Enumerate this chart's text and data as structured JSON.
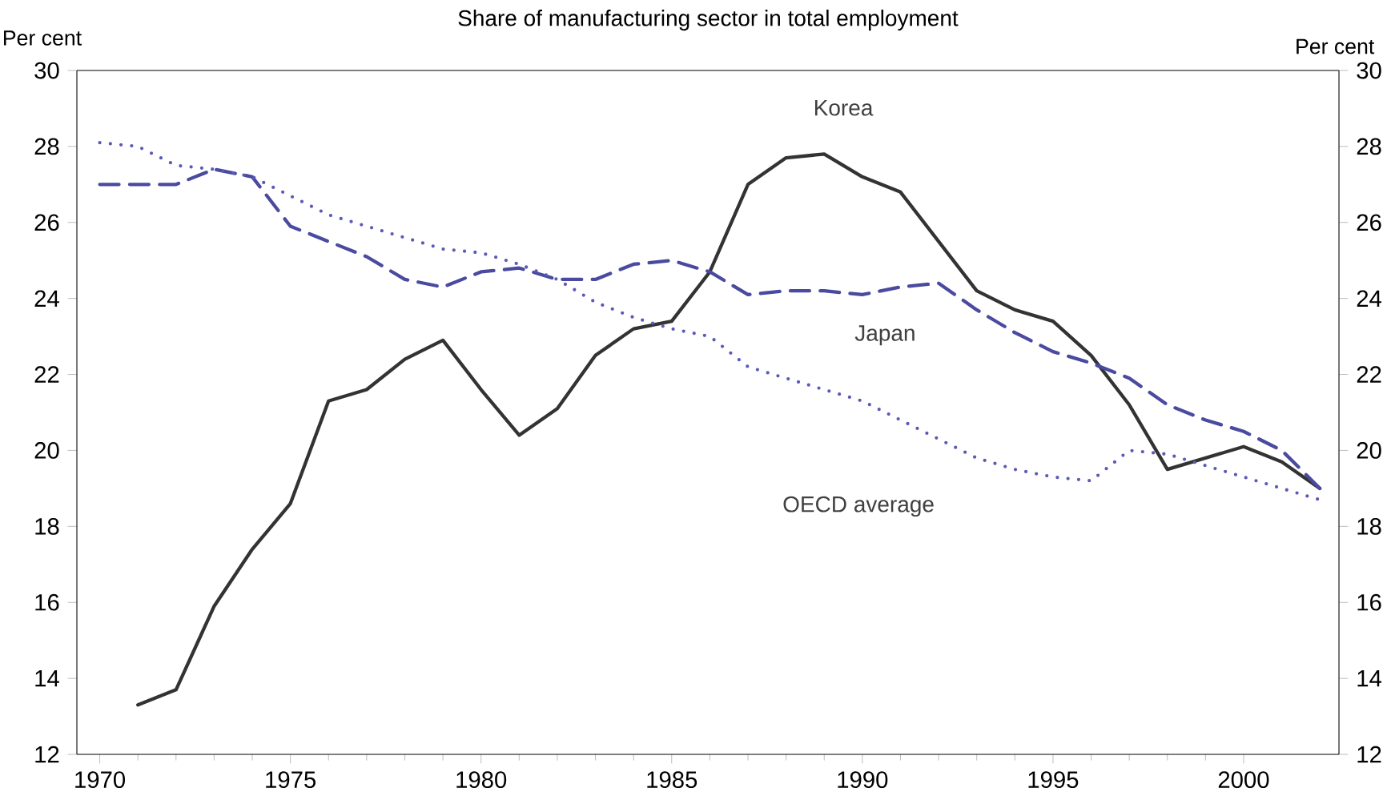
{
  "chart_data": {
    "type": "line",
    "title": "Share of manufacturing sector in total employment",
    "ylabel": "Per cent",
    "y2label": "Per cent",
    "x": [
      1970,
      1971,
      1972,
      1973,
      1974,
      1975,
      1976,
      1977,
      1978,
      1979,
      1980,
      1981,
      1982,
      1983,
      1984,
      1985,
      1986,
      1987,
      1988,
      1989,
      1990,
      1991,
      1992,
      1993,
      1994,
      1995,
      1996,
      1997,
      1998,
      1999,
      2000,
      2001,
      2002
    ],
    "series": [
      {
        "name": "Korea",
        "color": "#333333",
        "line_style": "solid",
        "values": [
          null,
          13.3,
          13.7,
          15.9,
          17.4,
          18.6,
          21.3,
          21.6,
          22.4,
          22.9,
          21.6,
          20.4,
          21.1,
          22.5,
          23.2,
          23.4,
          24.7,
          27.0,
          27.7,
          27.8,
          27.2,
          26.8,
          25.5,
          24.2,
          23.7,
          23.4,
          22.5,
          21.2,
          19.5,
          19.8,
          20.1,
          19.7,
          19.0
        ]
      },
      {
        "name": "Japan",
        "color": "#4a4aa0",
        "line_style": "dashed",
        "values": [
          27.0,
          27.0,
          27.0,
          27.4,
          27.2,
          25.9,
          25.5,
          25.1,
          24.5,
          24.3,
          24.7,
          24.8,
          24.5,
          24.5,
          24.9,
          25.0,
          24.7,
          24.1,
          24.2,
          24.2,
          24.1,
          24.3,
          24.4,
          23.7,
          23.1,
          22.6,
          22.3,
          21.9,
          21.2,
          20.8,
          20.5,
          20.0,
          19.0
        ]
      },
      {
        "name": "OECD average",
        "color": "#5a5ab8",
        "line_style": "dotted",
        "values": [
          28.1,
          28.0,
          27.5,
          27.4,
          27.2,
          26.7,
          26.2,
          25.9,
          25.6,
          25.3,
          25.2,
          24.9,
          24.5,
          23.9,
          23.5,
          23.2,
          23.0,
          22.2,
          21.9,
          21.6,
          21.3,
          20.8,
          20.3,
          19.8,
          19.5,
          19.3,
          19.2,
          20.0,
          19.9,
          19.6,
          19.3,
          19.0,
          18.7
        ]
      }
    ],
    "marker": "none",
    "xlim": [
      1969.4,
      2002.5
    ],
    "xticks": [
      1970,
      1975,
      1980,
      1985,
      1990,
      1995,
      2000
    ],
    "ylim": [
      12,
      30
    ],
    "yticks": [
      12,
      14,
      16,
      18,
      20,
      22,
      24,
      26,
      28,
      30
    ],
    "y2lim": [
      12,
      30
    ],
    "y2ticks": [
      12,
      14,
      16,
      18,
      20,
      22,
      24,
      26,
      28,
      30
    ]
  }
}
